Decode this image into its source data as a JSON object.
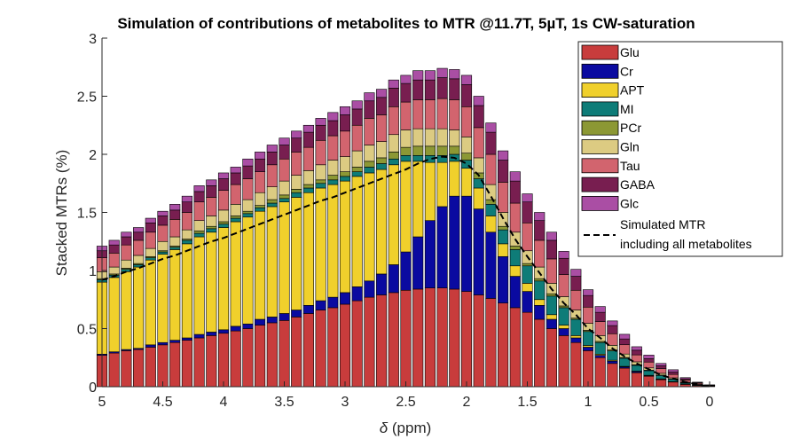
{
  "chart_data": {
    "type": "bar",
    "stacked": true,
    "title": "Simulation of contributions of metabolites to MTR @11.7T, 5µT, 1s CW-saturation",
    "xlabel_symbol": "δ",
    "xlabel_unit": " (ppm)",
    "ylabel": "Stacked MTRs (%)",
    "xlim": [
      5,
      0
    ],
    "ylim": [
      0,
      3
    ],
    "x_reversed": true,
    "xticks": [
      "5",
      "4.5",
      "4",
      "3.5",
      "3",
      "2.5",
      "2",
      "1.5",
      "1",
      "0.5",
      "0"
    ],
    "yticks": [
      "0",
      "0.5",
      "1",
      "1.5",
      "2",
      "2.5",
      "3"
    ],
    "legend_position": "top-right",
    "x": [
      5.0,
      4.9,
      4.8,
      4.7,
      4.6,
      4.5,
      4.4,
      4.3,
      4.2,
      4.1,
      4.0,
      3.9,
      3.8,
      3.7,
      3.6,
      3.5,
      3.4,
      3.3,
      3.2,
      3.1,
      3.0,
      2.9,
      2.8,
      2.7,
      2.6,
      2.5,
      2.4,
      2.3,
      2.2,
      2.1,
      2.0,
      1.9,
      1.8,
      1.7,
      1.6,
      1.5,
      1.4,
      1.3,
      1.2,
      1.1,
      1.0,
      0.9,
      0.8,
      0.7,
      0.6,
      0.5,
      0.4,
      0.3,
      0.2,
      0.1,
      0.0
    ],
    "series": [
      {
        "name": "Glu",
        "color": "#c83c3c",
        "values": [
          0.27,
          0.29,
          0.31,
          0.32,
          0.34,
          0.36,
          0.38,
          0.4,
          0.42,
          0.44,
          0.46,
          0.48,
          0.5,
          0.53,
          0.55,
          0.57,
          0.6,
          0.63,
          0.66,
          0.68,
          0.71,
          0.74,
          0.77,
          0.79,
          0.81,
          0.83,
          0.84,
          0.85,
          0.85,
          0.84,
          0.82,
          0.79,
          0.76,
          0.72,
          0.68,
          0.64,
          0.58,
          0.5,
          0.44,
          0.38,
          0.31,
          0.25,
          0.2,
          0.16,
          0.12,
          0.09,
          0.06,
          0.04,
          0.02,
          0.01,
          0.005
        ]
      },
      {
        "name": "Cr",
        "color": "#0a0aa0",
        "values": [
          0.01,
          0.01,
          0.01,
          0.01,
          0.02,
          0.02,
          0.02,
          0.02,
          0.03,
          0.03,
          0.03,
          0.04,
          0.04,
          0.05,
          0.05,
          0.06,
          0.06,
          0.07,
          0.08,
          0.09,
          0.1,
          0.12,
          0.14,
          0.18,
          0.24,
          0.33,
          0.45,
          0.58,
          0.7,
          0.8,
          0.82,
          0.74,
          0.57,
          0.4,
          0.27,
          0.18,
          0.12,
          0.08,
          0.06,
          0.04,
          0.03,
          0.02,
          0.02,
          0.01,
          0.01,
          0.005,
          0.005,
          0.003,
          0.002,
          0.001,
          0.0
        ]
      },
      {
        "name": "APT",
        "color": "#f0d02c",
        "values": [
          0.62,
          0.64,
          0.67,
          0.7,
          0.73,
          0.76,
          0.78,
          0.81,
          0.84,
          0.86,
          0.88,
          0.9,
          0.92,
          0.93,
          0.95,
          0.96,
          0.97,
          0.97,
          0.97,
          0.97,
          0.96,
          0.95,
          0.93,
          0.9,
          0.86,
          0.78,
          0.65,
          0.5,
          0.38,
          0.3,
          0.24,
          0.18,
          0.14,
          0.11,
          0.09,
          0.07,
          0.05,
          0.04,
          0.03,
          0.02,
          0.015,
          0.01,
          0.008,
          0.005,
          0.004,
          0.003,
          0.002,
          0.001,
          0.0,
          0.0,
          0.0
        ]
      },
      {
        "name": "MI",
        "color": "#0e7c78",
        "values": [
          0.02,
          0.02,
          0.02,
          0.02,
          0.02,
          0.02,
          0.02,
          0.03,
          0.03,
          0.03,
          0.03,
          0.03,
          0.03,
          0.03,
          0.03,
          0.03,
          0.04,
          0.04,
          0.04,
          0.04,
          0.04,
          0.04,
          0.05,
          0.05,
          0.05,
          0.05,
          0.05,
          0.06,
          0.06,
          0.06,
          0.07,
          0.08,
          0.1,
          0.12,
          0.14,
          0.15,
          0.16,
          0.16,
          0.15,
          0.14,
          0.12,
          0.1,
          0.08,
          0.07,
          0.05,
          0.04,
          0.03,
          0.02,
          0.01,
          0.005,
          0.0
        ]
      },
      {
        "name": "PCr",
        "color": "#8c9834",
        "values": [
          0.01,
          0.01,
          0.01,
          0.01,
          0.01,
          0.01,
          0.01,
          0.01,
          0.02,
          0.02,
          0.02,
          0.02,
          0.02,
          0.02,
          0.03,
          0.03,
          0.03,
          0.03,
          0.03,
          0.04,
          0.04,
          0.04,
          0.05,
          0.05,
          0.06,
          0.07,
          0.08,
          0.08,
          0.08,
          0.07,
          0.06,
          0.05,
          0.04,
          0.03,
          0.03,
          0.02,
          0.02,
          0.02,
          0.015,
          0.01,
          0.01,
          0.01,
          0.008,
          0.006,
          0.005,
          0.004,
          0.003,
          0.002,
          0.001,
          0.0,
          0.0
        ]
      },
      {
        "name": "Gln",
        "color": "#dccb82",
        "values": [
          0.06,
          0.06,
          0.07,
          0.07,
          0.07,
          0.08,
          0.08,
          0.08,
          0.09,
          0.09,
          0.1,
          0.1,
          0.1,
          0.11,
          0.11,
          0.12,
          0.12,
          0.12,
          0.13,
          0.13,
          0.13,
          0.14,
          0.14,
          0.14,
          0.15,
          0.15,
          0.15,
          0.15,
          0.15,
          0.14,
          0.14,
          0.13,
          0.13,
          0.12,
          0.12,
          0.11,
          0.1,
          0.09,
          0.08,
          0.07,
          0.06,
          0.05,
          0.04,
          0.03,
          0.025,
          0.02,
          0.015,
          0.01,
          0.005,
          0.003,
          0.0
        ]
      },
      {
        "name": "Tau",
        "color": "#d2646e",
        "values": [
          0.12,
          0.12,
          0.13,
          0.13,
          0.14,
          0.14,
          0.15,
          0.15,
          0.16,
          0.16,
          0.17,
          0.17,
          0.18,
          0.18,
          0.19,
          0.19,
          0.2,
          0.2,
          0.21,
          0.21,
          0.22,
          0.22,
          0.23,
          0.23,
          0.24,
          0.24,
          0.25,
          0.25,
          0.26,
          0.26,
          0.26,
          0.26,
          0.26,
          0.26,
          0.25,
          0.24,
          0.23,
          0.21,
          0.19,
          0.17,
          0.14,
          0.12,
          0.1,
          0.08,
          0.06,
          0.05,
          0.04,
          0.03,
          0.02,
          0.01,
          0.005
        ]
      },
      {
        "name": "GABA",
        "color": "#781e50",
        "values": [
          0.06,
          0.07,
          0.07,
          0.07,
          0.08,
          0.08,
          0.08,
          0.09,
          0.09,
          0.1,
          0.1,
          0.1,
          0.11,
          0.11,
          0.11,
          0.12,
          0.12,
          0.13,
          0.13,
          0.13,
          0.14,
          0.14,
          0.15,
          0.15,
          0.16,
          0.16,
          0.17,
          0.17,
          0.18,
          0.18,
          0.19,
          0.19,
          0.19,
          0.19,
          0.19,
          0.18,
          0.17,
          0.16,
          0.14,
          0.12,
          0.1,
          0.08,
          0.07,
          0.05,
          0.04,
          0.03,
          0.025,
          0.02,
          0.01,
          0.005,
          0.003
        ]
      },
      {
        "name": "Glc",
        "color": "#aa4ea4",
        "values": [
          0.04,
          0.04,
          0.04,
          0.04,
          0.04,
          0.04,
          0.05,
          0.05,
          0.05,
          0.05,
          0.05,
          0.05,
          0.06,
          0.06,
          0.06,
          0.06,
          0.06,
          0.06,
          0.06,
          0.07,
          0.07,
          0.07,
          0.07,
          0.07,
          0.07,
          0.07,
          0.08,
          0.08,
          0.08,
          0.08,
          0.08,
          0.08,
          0.08,
          0.08,
          0.08,
          0.07,
          0.07,
          0.07,
          0.06,
          0.06,
          0.05,
          0.05,
          0.04,
          0.04,
          0.03,
          0.03,
          0.02,
          0.02,
          0.01,
          0.005,
          0.003
        ]
      }
    ],
    "line": {
      "name_line1": "Simulated MTR",
      "name_line2": "including all metabolites",
      "style": "dashed",
      "color": "#000000",
      "values": [
        0.92,
        0.95,
        0.99,
        1.02,
        1.06,
        1.1,
        1.13,
        1.17,
        1.21,
        1.25,
        1.28,
        1.32,
        1.36,
        1.4,
        1.44,
        1.48,
        1.52,
        1.56,
        1.6,
        1.63,
        1.67,
        1.71,
        1.75,
        1.79,
        1.83,
        1.87,
        1.92,
        1.96,
        1.98,
        1.97,
        1.92,
        1.82,
        1.64,
        1.45,
        1.27,
        1.12,
        0.98,
        0.84,
        0.72,
        0.62,
        0.5,
        0.42,
        0.33,
        0.26,
        0.2,
        0.15,
        0.1,
        0.07,
        0.04,
        0.02,
        0.0
      ]
    }
  }
}
